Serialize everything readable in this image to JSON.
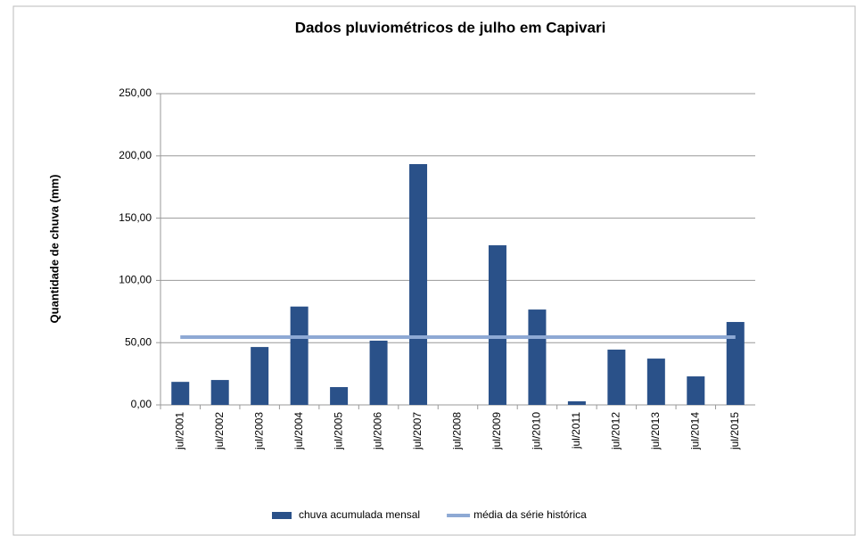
{
  "chart_data": {
    "type": "bar",
    "title": "Dados pluviométricos de julho em Capivari",
    "y_label": "Quantidade de chuva (mm)",
    "categories": [
      "jul/2001",
      "jul/2002",
      "jul/2003",
      "jul/2004",
      "jul/2005",
      "jul/2006",
      "jul/2007",
      "jul/2008",
      "jul/2009",
      "jul/2010",
      "jul/2011",
      "jul/2012",
      "jul/2013",
      "jul/2014",
      "jul/2015"
    ],
    "series": [
      {
        "name": "chuva acumulada mensal",
        "type": "bar",
        "color": "#2a5189",
        "values": [
          18.5,
          20,
          46.5,
          79,
          14.3,
          51.6,
          193.4,
          0,
          128.2,
          76.6,
          2.9,
          44.4,
          37.2,
          22.9,
          66.6
        ]
      },
      {
        "name": "média da série histórica",
        "type": "line",
        "color": "#8ea9d4",
        "values": [
          54.4,
          54.4,
          54.4,
          54.4,
          54.4,
          54.4,
          54.4,
          54.4,
          54.4,
          54.4,
          54.4,
          54.4,
          54.4,
          54.4,
          54.4
        ]
      }
    ],
    "ylim": [
      0,
      250
    ],
    "yticks": [
      {
        "value": 0,
        "label": "0,00"
      },
      {
        "value": 50,
        "label": "50,00"
      },
      {
        "value": 100,
        "label": "100,00"
      },
      {
        "value": 150,
        "label": "150,00"
      },
      {
        "value": 200,
        "label": "200,00"
      },
      {
        "value": 250,
        "label": "250,00"
      }
    ],
    "grid": true,
    "legend": "bottom"
  }
}
